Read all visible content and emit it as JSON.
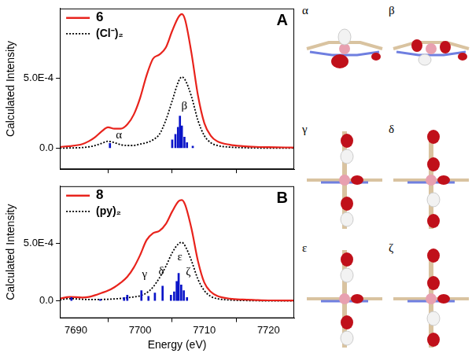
{
  "chart_data": [
    {
      "type": "line",
      "title": "A",
      "x_label": "",
      "y_label": "Calculated Intensity",
      "x": [
        7687.5,
        7689,
        7691,
        7692,
        7693,
        7694,
        7695,
        7696,
        7697,
        7698,
        7699,
        7700,
        7701,
        7702,
        7703,
        7704,
        7705,
        7706,
        7706.5,
        7707,
        7708,
        7709,
        7710,
        7711,
        7712,
        7714,
        7716,
        7718,
        7720,
        7724
      ],
      "series": [
        {
          "name": "6",
          "color": "#e8231c",
          "line_style": "solid",
          "values": [
            1e-05,
            1.5e-05,
            3e-05,
            5e-05,
            8e-05,
            0.00012,
            0.00015,
            0.00014,
            0.00014,
            0.00017,
            0.00024,
            0.00036,
            0.00052,
            0.00064,
            0.00067,
            0.00072,
            0.00084,
            0.00094,
            0.00096,
            0.00092,
            0.00068,
            0.00038,
            0.00018,
            9e-05,
            5e-05,
            2.5e-05,
            1.5e-05,
            1e-05,
            8e-06,
            5e-06
          ]
        },
        {
          "name": "(Cl⁻)₂",
          "color": "#000000",
          "line_style": "dotted",
          "values": [
            1e-06,
            2e-06,
            5e-06,
            1e-05,
            2e-05,
            3.5e-05,
            5e-05,
            4e-05,
            2.5e-05,
            2e-05,
            2e-05,
            3e-05,
            4e-05,
            6e-05,
            0.0001,
            0.0002,
            0.00034,
            0.00048,
            0.00051,
            0.00049,
            0.00037,
            0.0002,
            9e-05,
            4e-05,
            2e-05,
            8e-06,
            4e-06,
            2e-06,
            1e-06,
            1e-06
          ]
        }
      ],
      "sticks": {
        "type": "bar",
        "color": "#0a14c8",
        "x": [
          7695.3,
          7705.0,
          7705.5,
          7705.9,
          7706.2,
          7706.5,
          7706.9,
          7707.3,
          7708.2
        ],
        "values": [
          3.5e-05,
          6e-05,
          0.0001,
          0.00015,
          0.00023,
          0.00016,
          8e-05,
          4e-05,
          1.5e-05
        ]
      },
      "annotations": [
        {
          "text": "α",
          "x": 7696.7,
          "y": 5e-05
        },
        {
          "text": "β",
          "x": 7706.9,
          "y": 0.00026
        }
      ],
      "xlim": [
        7687.5,
        7724
      ],
      "xticks": [
        7690,
        7700,
        7710,
        7720
      ],
      "ylim": [
        -0.00015,
        0.001
      ],
      "yticks": [
        {
          "value": 0,
          "label": "0.0"
        },
        {
          "value": 0.0005,
          "label": "5.0E-4"
        }
      ],
      "grid": false,
      "legend": "upper left",
      "tick_labels": "y"
    },
    {
      "type": "line",
      "title": "B",
      "x_label": "Energy (eV)",
      "y_label": "Calculated Intensity",
      "x": [
        7687.5,
        7689,
        7691,
        7692,
        7693,
        7694,
        7695,
        7696,
        7697,
        7698,
        7699,
        7700,
        7701,
        7702,
        7703,
        7704,
        7705,
        7706,
        7706.5,
        7707,
        7708,
        7709,
        7710,
        7711,
        7712,
        7714,
        7716,
        7718,
        7720,
        7724
      ],
      "series": [
        {
          "name": "8",
          "color": "#e8231c",
          "line_style": "solid",
          "values": [
            2e-05,
            3.5e-05,
            3e-05,
            3.5e-05,
            5e-05,
            7e-05,
            9e-05,
            0.00012,
            0.00016,
            0.00021,
            0.00029,
            0.0004,
            0.00053,
            0.00059,
            0.00061,
            0.00067,
            0.00078,
            0.00087,
            0.00088,
            0.00084,
            0.00063,
            0.00035,
            0.00016,
            8e-05,
            4.5e-05,
            2e-05,
            1.2e-05,
            8e-06,
            5e-06,
            4e-06
          ]
        },
        {
          "name": "(py)₂",
          "color": "#000000",
          "line_style": "dotted",
          "values": [
            1e-05,
            2e-05,
            1.5e-05,
            1.2e-05,
            1.2e-05,
            1.3e-05,
            1.5e-05,
            1.8e-05,
            2.2e-05,
            2.8e-05,
            3.5e-05,
            4.5e-05,
            7e-05,
            0.00012,
            0.0002,
            0.0003,
            0.00042,
            0.0005,
            0.00051,
            0.00048,
            0.00035,
            0.00019,
            9e-05,
            4e-05,
            2e-05,
            8e-06,
            4e-06,
            2e-06,
            1e-06,
            1e-06
          ]
        }
      ],
      "sticks": {
        "type": "bar",
        "color": "#0a14c8",
        "x": [
          7689.3,
          7693.8,
          7697.5,
          7698.0,
          7700.2,
          7701.3,
          7702.3,
          7703.5,
          7704.8,
          7705.3,
          7705.7,
          7706.0,
          7706.4,
          7706.8,
          7707.3
        ],
        "values": [
          3e-05,
          1.5e-05,
          3e-05,
          5e-05,
          9e-05,
          4e-05,
          7e-05,
          0.00013,
          5e-05,
          8e-05,
          0.00017,
          0.00024,
          0.00014,
          9e-05,
          3e-05
        ]
      },
      "annotations": [
        {
          "text": "γ",
          "x": 7700.7,
          "y": 0.00018
        },
        {
          "text": "δ",
          "x": 7703.3,
          "y": 0.00021
        },
        {
          "text": "ε",
          "x": 7706.2,
          "y": 0.00033
        },
        {
          "text": "ζ",
          "x": 7707.5,
          "y": 0.0002
        }
      ],
      "xlim": [
        7687.5,
        7724
      ],
      "xticks": [
        7690,
        7700,
        7710,
        7720
      ],
      "ylim": [
        -0.00015,
        0.001
      ],
      "yticks": [
        {
          "value": 0,
          "label": "0.0"
        },
        {
          "value": 0.0005,
          "label": "5.0E-4"
        }
      ],
      "grid": false,
      "legend": "upper left",
      "tick_labels": true
    }
  ],
  "orbital_panels": [
    {
      "label": "α"
    },
    {
      "label": "β"
    },
    {
      "label": "γ"
    },
    {
      "label": "δ"
    },
    {
      "label": "ε"
    },
    {
      "label": "ζ"
    }
  ]
}
